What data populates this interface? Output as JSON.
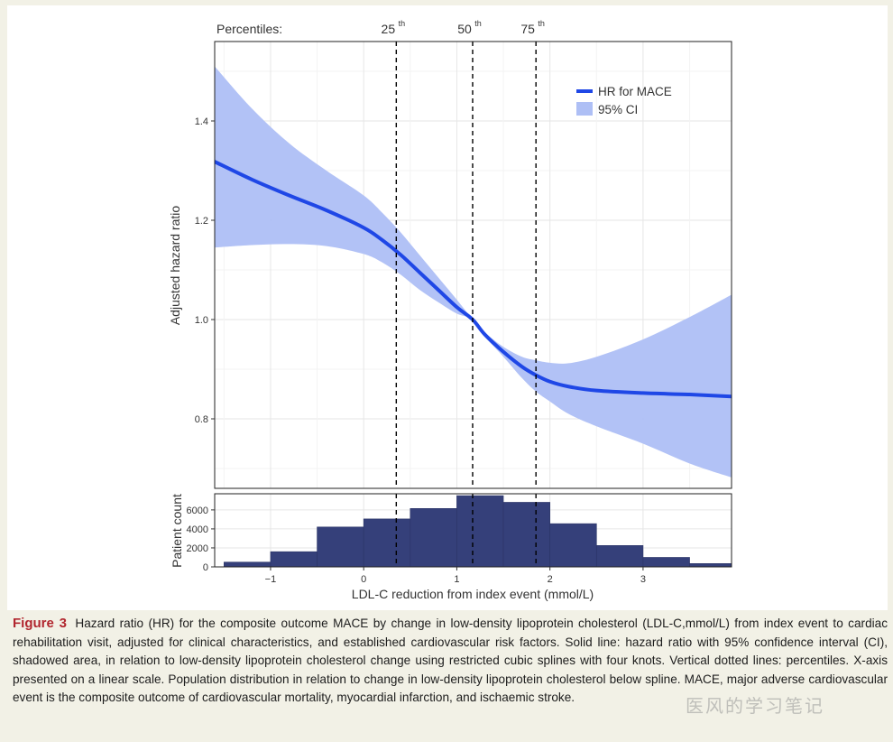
{
  "colors": {
    "line": "#1f47e6",
    "ci_fill": "#aebff5",
    "bars": "#35407a",
    "percentile_line": "#000000",
    "caption_label": "#b1262e",
    "panel_border": "#222222",
    "grid": "#ebebeb"
  },
  "chart_data": [
    {
      "type": "line",
      "series": [
        {
          "name": "HR for MACE",
          "x": [
            -1.6,
            -1.2,
            -0.8,
            -0.4,
            0.0,
            0.2,
            0.4,
            0.6,
            0.8,
            1.0,
            1.17,
            1.3,
            1.5,
            1.7,
            1.85,
            2.0,
            2.2,
            2.5,
            3.0,
            3.5,
            3.95
          ],
          "y": [
            1.318,
            1.282,
            1.25,
            1.22,
            1.185,
            1.16,
            1.13,
            1.095,
            1.06,
            1.025,
            1.0,
            0.97,
            0.935,
            0.905,
            0.888,
            0.875,
            0.865,
            0.857,
            0.852,
            0.849,
            0.845
          ]
        },
        {
          "name": "95% CI",
          "type": "band",
          "x": [
            -1.6,
            -1.2,
            -0.8,
            -0.4,
            0.0,
            0.2,
            0.4,
            0.6,
            0.8,
            1.0,
            1.17,
            1.3,
            1.5,
            1.7,
            1.85,
            2.0,
            2.2,
            2.5,
            3.0,
            3.5,
            3.95
          ],
          "lower": [
            1.145,
            1.15,
            1.152,
            1.148,
            1.132,
            1.115,
            1.09,
            1.06,
            1.035,
            1.012,
            1.0,
            0.966,
            0.925,
            0.882,
            0.855,
            0.835,
            0.81,
            0.785,
            0.75,
            0.71,
            0.682
          ],
          "upper": [
            1.51,
            1.425,
            1.355,
            1.3,
            1.25,
            1.215,
            1.175,
            1.13,
            1.085,
            1.04,
            1.0,
            0.974,
            0.945,
            0.925,
            0.918,
            0.913,
            0.912,
            0.925,
            0.96,
            1.005,
            1.05
          ]
        }
      ],
      "percentiles": [
        {
          "label": "25",
          "suffix": "th",
          "x": 0.35
        },
        {
          "label": "50",
          "suffix": "th",
          "x": 1.17
        },
        {
          "label": "75",
          "suffix": "th",
          "x": 1.85
        }
      ],
      "percentiles_label": "Percentiles:",
      "title": "",
      "xlabel": "",
      "ylabel": "Adjusted hazard ratio",
      "xlim": [
        -1.6,
        3.95
      ],
      "ylim": [
        0.66,
        1.56
      ],
      "yticks": [
        0.8,
        1.0,
        1.2,
        1.4
      ],
      "ytick_labels": [
        "0.8",
        "1.0",
        "1.2",
        "1.4"
      ],
      "legend_position": "top-right",
      "grid": true
    },
    {
      "type": "bar",
      "bins": [
        {
          "x0": -1.5,
          "x1": -1.0,
          "value": 500
        },
        {
          "x0": -1.0,
          "x1": -0.5,
          "value": 1600
        },
        {
          "x0": -0.5,
          "x1": 0.0,
          "value": 4200
        },
        {
          "x0": 0.0,
          "x1": 0.5,
          "value": 5050
        },
        {
          "x0": 0.5,
          "x1": 1.0,
          "value": 6150
        },
        {
          "x0": 1.0,
          "x1": 1.5,
          "value": 7500
        },
        {
          "x0": 1.5,
          "x1": 2.0,
          "value": 6800
        },
        {
          "x0": 2.0,
          "x1": 2.5,
          "value": 4550
        },
        {
          "x0": 2.5,
          "x1": 3.0,
          "value": 2250
        },
        {
          "x0": 3.0,
          "x1": 3.5,
          "value": 1000
        },
        {
          "x0": 3.5,
          "x1": 4.0,
          "value": 350
        }
      ],
      "ylabel": "Patient count",
      "xlabel": "LDL-C reduction from index event (mmol/L)",
      "xlim": [
        -1.6,
        3.95
      ],
      "ylim": [
        0,
        7700
      ],
      "xticks": [
        -1,
        0,
        1,
        2,
        3
      ],
      "xtick_labels": [
        "−1",
        "0",
        "1",
        "2",
        "3"
      ],
      "yticks": [
        0,
        2000,
        4000,
        6000
      ],
      "ytick_labels": [
        "0",
        "2000",
        "4000",
        "6000"
      ],
      "grid": true
    }
  ],
  "caption": {
    "label": "Figure 3",
    "text": "Hazard ratio (HR) for the composite outcome MACE by change in low-density lipoprotein cholesterol (LDL-C,mmol/L) from index event to cardiac rehabilitation visit, adjusted for clinical characteristics, and established cardiovascular risk factors. Solid line: hazard ratio with 95% confidence interval (CI), shadowed area, in relation to low-density lipoprotein cholesterol change using restricted cubic splines with four knots. Vertical dotted lines: percentiles. X-axis presented on a linear scale. Population distribution in relation to change in low-density lipoprotein cholesterol below spline. MACE, major adverse cardiovascular event is the composite outcome of cardiovascular mortality, myocardial infarction, and ischaemic stroke."
  },
  "watermark": {
    "text": "医风的学习笔记"
  }
}
